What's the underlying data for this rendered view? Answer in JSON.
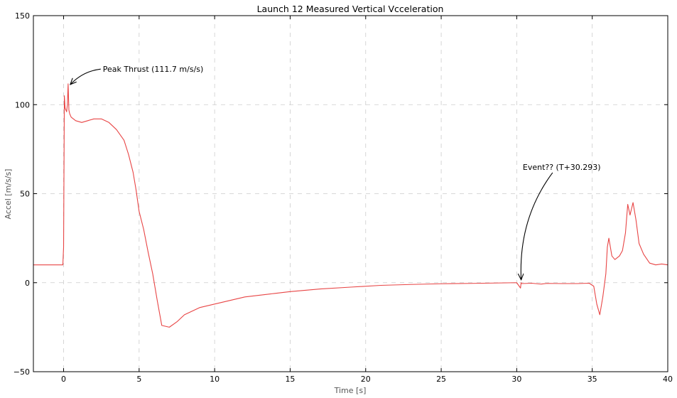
{
  "chart_data": {
    "type": "line",
    "title": "Launch 12 Measured Vertical Vcceleration",
    "xlabel": "Time [s]",
    "ylabel": "Accel [m/s/s]",
    "xlim": [
      -2,
      40
    ],
    "ylim": [
      -50,
      150
    ],
    "xticks": [
      0,
      5,
      10,
      15,
      20,
      25,
      30,
      35,
      40
    ],
    "yticks": [
      -50,
      0,
      50,
      100,
      150
    ],
    "xtick_labels": [
      "0",
      "5",
      "10",
      "15",
      "20",
      "25",
      "30",
      "35",
      "40"
    ],
    "ytick_labels": [
      "−50",
      "0",
      "50",
      "100",
      "150"
    ],
    "grid": true,
    "line_color": "#e84545",
    "series": [
      {
        "x": [
          -2,
          -0.05,
          0.0,
          0.05,
          0.1,
          0.2,
          0.25,
          0.3,
          0.35,
          0.4,
          0.5,
          0.8,
          1.2,
          1.6,
          2.0,
          2.5,
          3.0,
          3.5,
          4.0,
          4.3,
          4.6,
          4.8,
          5.0,
          5.3,
          5.6,
          5.9,
          6.2,
          6.5,
          7.0,
          7.5,
          8.0,
          9.0,
          10.0,
          11.0,
          12.0,
          13.0,
          14.0,
          15.0,
          17.0,
          19.0,
          21.0,
          23.0,
          25.0,
          27.0,
          30.0,
          30.25,
          30.29,
          30.33,
          31.0,
          31.6,
          32.0,
          33.0,
          34.0,
          34.8,
          35.1,
          35.3,
          35.5,
          35.7,
          35.9,
          36.0,
          36.1,
          36.3,
          36.5,
          36.8,
          37.0,
          37.2,
          37.35,
          37.5,
          37.7,
          37.9,
          38.1,
          38.4,
          38.8,
          39.2,
          39.6,
          40.0
        ],
        "y": [
          10,
          10,
          20,
          105,
          98,
          96,
          100,
          111.7,
          97,
          95,
          93,
          91,
          90,
          91,
          92,
          92,
          90,
          86,
          80,
          72,
          62,
          52,
          40,
          30,
          17,
          5,
          -10,
          -24,
          -25,
          -22,
          -18,
          -14,
          -12,
          -10,
          -8,
          -7,
          -6,
          -5,
          -3.5,
          -2.5,
          -1.5,
          -1,
          -0.6,
          -0.4,
          0,
          -3,
          0,
          -0.5,
          -0.3,
          -0.8,
          -0.4,
          -0.5,
          -0.5,
          -0.3,
          -2,
          -12,
          -18,
          -8,
          5,
          20,
          25,
          15,
          13,
          15,
          18,
          28,
          44,
          38,
          45,
          35,
          22,
          16,
          11,
          10,
          10.5,
          10
        ]
      }
    ],
    "annotations": [
      {
        "text": "Peak Thrust (111.7 m/s/s)",
        "point": [
          0.3,
          111.7
        ],
        "text_pos": [
          2.6,
          120
        ]
      },
      {
        "text": "Event?? (T+30.293)",
        "point": [
          30.293,
          0
        ],
        "text_pos": [
          30.4,
          65
        ]
      }
    ]
  }
}
